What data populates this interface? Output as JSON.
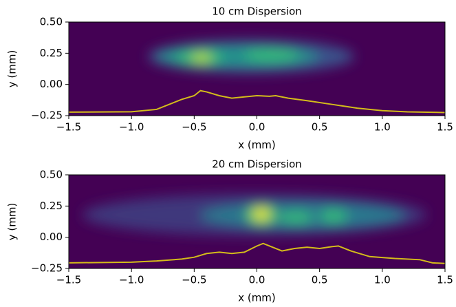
{
  "chart_data": [
    {
      "type": "line",
      "title": "10 cm Dispersion",
      "xlabel": "x (mm)",
      "ylabel": "y (mm)",
      "x": [
        -1.5,
        -1.0,
        -0.8,
        -0.7,
        -0.6,
        -0.5,
        -0.45,
        -0.4,
        -0.3,
        -0.2,
        -0.1,
        0.0,
        0.1,
        0.15,
        0.25,
        0.4,
        0.6,
        0.8,
        1.0,
        1.2,
        1.5
      ],
      "values": [
        -0.222,
        -0.219,
        -0.2,
        -0.16,
        -0.12,
        -0.09,
        -0.05,
        -0.06,
        -0.09,
        -0.11,
        -0.1,
        -0.09,
        -0.095,
        -0.09,
        -0.11,
        -0.13,
        -0.16,
        -0.19,
        -0.21,
        -0.22,
        -0.225
      ],
      "color": "#d4bc1a",
      "xlim": [
        -1.5,
        1.5
      ],
      "ylim": [
        -0.25,
        0.5
      ],
      "xticks": [
        {
          "value": -1.5,
          "label": "−1.5"
        },
        {
          "value": -1.0,
          "label": "−1.0"
        },
        {
          "value": -0.5,
          "label": "−0.5"
        },
        {
          "value": 0.0,
          "label": "0.0"
        },
        0.5,
        {
          "value": 1.0,
          "label": "1.0"
        },
        {
          "value": 1.5,
          "label": "1.5"
        }
      ],
      "yticks": [
        {
          "value": -0.25,
          "label": "−0.25"
        },
        {
          "value": 0.0,
          "label": "0.00"
        },
        0.25,
        {
          "value": 0.5,
          "label": "0.50"
        }
      ]
    },
    {
      "type": "line",
      "title": "20 cm Dispersion",
      "xlabel": "x (mm)",
      "ylabel": "y (mm)",
      "x": [
        -1.5,
        -1.0,
        -0.8,
        -0.6,
        -0.5,
        -0.4,
        -0.3,
        -0.2,
        -0.1,
        0.0,
        0.05,
        0.1,
        0.2,
        0.3,
        0.4,
        0.5,
        0.6,
        0.65,
        0.75,
        0.9,
        1.1,
        1.3,
        1.4,
        1.5
      ],
      "values": [
        -0.205,
        -0.2,
        -0.19,
        -0.175,
        -0.16,
        -0.13,
        -0.12,
        -0.13,
        -0.12,
        -0.07,
        -0.05,
        -0.07,
        -0.11,
        -0.09,
        -0.08,
        -0.09,
        -0.075,
        -0.07,
        -0.11,
        -0.155,
        -0.17,
        -0.18,
        -0.205,
        -0.21
      ],
      "color": "#d4bc1a",
      "xlim": [
        -1.5,
        1.5
      ],
      "ylim": [
        -0.25,
        0.5
      ],
      "xticks": [
        {
          "value": -1.5,
          "label": "−1.5"
        },
        {
          "value": -1.0,
          "label": "−1.0"
        },
        {
          "value": -0.5,
          "label": "−0.5"
        },
        {
          "value": 0.0,
          "label": "0.0"
        },
        0.5,
        {
          "value": 1.0,
          "label": "1.0"
        },
        {
          "value": 1.5,
          "label": "1.5"
        }
      ],
      "yticks": [
        {
          "value": -0.25,
          "label": "−0.25"
        },
        {
          "value": 0.0,
          "label": "0.00"
        },
        0.25,
        {
          "value": 0.5,
          "label": "0.50"
        }
      ]
    }
  ]
}
